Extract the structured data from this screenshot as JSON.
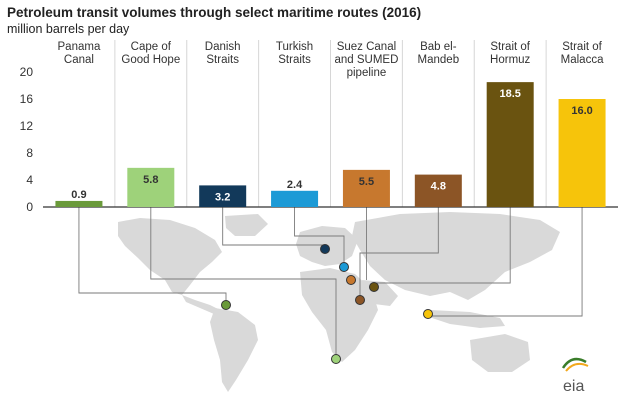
{
  "header": {
    "title": "Petroleum transit volumes through select maritime routes (2016)",
    "ylabel": "million barrels per day"
  },
  "chart_data": {
    "type": "bar",
    "title": "Petroleum transit volumes through select maritime routes (2016)",
    "ylabel": "million barrels per day",
    "xlabel": "",
    "ylim": [
      0,
      20
    ],
    "yticks": [
      0,
      4,
      8,
      12,
      16,
      20
    ],
    "ytick_labels": [
      "0",
      "4",
      "8",
      "12",
      "16",
      "20"
    ],
    "grid": "vertical separators between categories",
    "categories": [
      {
        "lines": [
          "Panama",
          "Canal"
        ]
      },
      {
        "lines": [
          "Cape of",
          "Good Hope"
        ]
      },
      {
        "lines": [
          "Danish",
          "Straits"
        ]
      },
      {
        "lines": [
          "Turkish",
          "Straits"
        ]
      },
      {
        "lines": [
          "Suez Canal",
          "and SUMED",
          "pipeline"
        ]
      },
      {
        "lines": [
          "Bab el-",
          "Mandeb"
        ]
      },
      {
        "lines": [
          "Strait of",
          "Hormuz"
        ]
      },
      {
        "lines": [
          "Strait of",
          "Malacca"
        ]
      }
    ],
    "values": [
      0.9,
      5.8,
      3.2,
      2.4,
      5.5,
      4.8,
      18.5,
      16.0
    ],
    "value_labels": [
      "0.9",
      "5.8",
      "3.2",
      "2.4",
      "5.5",
      "4.8",
      "18.5",
      "16.0"
    ],
    "colors": [
      "#6a9a3a",
      "#9ed27a",
      "#12395a",
      "#1c9ad6",
      "#c7782e",
      "#8c5526",
      "#6a5310",
      "#f6c40b"
    ],
    "label_colors": [
      "#333333",
      "#333333",
      "#ffffff",
      "#333333",
      "#333333",
      "#ffffff",
      "#ffffff",
      "#333333"
    ],
    "background_map": "world map with connector lines from each bar to its route location"
  },
  "branding": {
    "logo_text": "eia"
  }
}
